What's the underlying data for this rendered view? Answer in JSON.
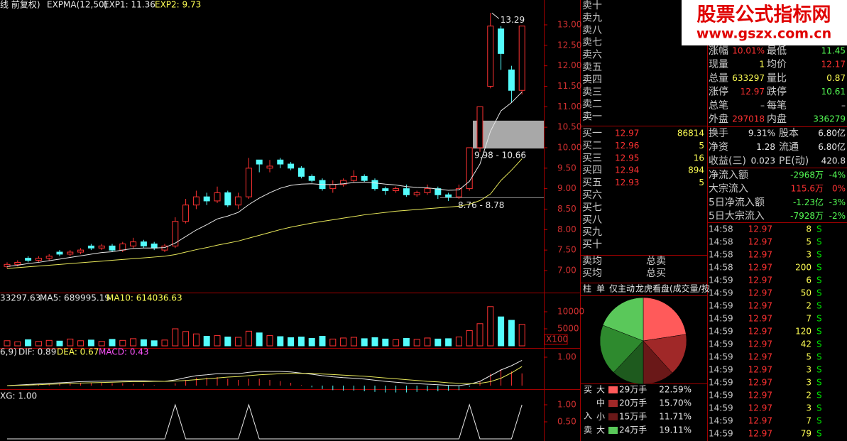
{
  "watermark": {
    "title": "股票公式指标网",
    "url": "www.gszx.com.cn"
  },
  "kline": {
    "header": [
      "线 前复权)",
      "EXPMA(12,50)",
      "EXP1: 11.36",
      "EXP2: 9.73"
    ],
    "up_color": "#ff3232",
    "down_color": "#54fcfc",
    "exp1_color": "#e8e8e8",
    "exp2_color": "#e8e85a",
    "ylim": [
      6.5,
      13.35
    ],
    "yticks": [
      {
        "value": 13,
        "label": "13.00"
      },
      {
        "value": 12.5,
        "label": "12.50"
      },
      {
        "value": 12,
        "label": "12.00"
      },
      {
        "value": 11.5,
        "label": "11.50"
      },
      {
        "value": 11,
        "label": "11.00"
      },
      {
        "value": 10.5,
        "label": "10.50"
      },
      {
        "value": 10,
        "label": "10.00"
      },
      {
        "value": 9.5,
        "label": "9.50"
      },
      {
        "value": 9,
        "label": "9.00"
      },
      {
        "value": 8.5,
        "label": "8.50"
      },
      {
        "value": 8,
        "label": "8.00"
      },
      {
        "value": 7.5,
        "label": "7.50"
      },
      {
        "value": 7,
        "label": "7.00"
      }
    ],
    "open": [
      7.1,
      7.15,
      7.3,
      7.25,
      7.3,
      7.45,
      7.4,
      7.45,
      7.6,
      7.55,
      7.6,
      7.5,
      7.6,
      7.7,
      7.65,
      7.5,
      7.6,
      8.2,
      8.6,
      8.8,
      8.7,
      8.9,
      8.6,
      8.8,
      9.7,
      9.5,
      9.7,
      9.6,
      9.5,
      9.3,
      9.2,
      9.0,
      9.1,
      9.2,
      9.3,
      9.2,
      9.0,
      8.95,
      9.0,
      8.85,
      8.9,
      9.0,
      8.85,
      8.8,
      9.0,
      10.0,
      11.5,
      12.9,
      11.9,
      11.4
    ],
    "high": [
      7.2,
      7.25,
      7.35,
      7.35,
      7.4,
      7.5,
      7.5,
      7.55,
      7.65,
      7.65,
      7.65,
      7.7,
      7.8,
      7.75,
      7.7,
      7.65,
      8.3,
      8.75,
      8.95,
      8.9,
      9.05,
      8.95,
      8.9,
      9.75,
      9.7,
      9.7,
      9.75,
      9.65,
      9.55,
      9.35,
      9.25,
      9.2,
      9.25,
      9.45,
      9.35,
      9.25,
      9.05,
      9.05,
      9.1,
      8.95,
      9.1,
      9.05,
      8.9,
      9.1,
      10.0,
      11.0,
      13.29,
      12.97,
      12.0,
      12.97
    ],
    "low": [
      7.05,
      7.1,
      7.2,
      7.2,
      7.25,
      7.35,
      7.35,
      7.4,
      7.5,
      7.5,
      7.45,
      7.45,
      7.55,
      7.55,
      7.5,
      7.45,
      7.55,
      8.15,
      8.5,
      8.6,
      8.65,
      8.55,
      8.5,
      8.75,
      9.4,
      9.4,
      9.5,
      9.45,
      9.25,
      9.15,
      8.95,
      8.9,
      9.05,
      9.15,
      9.15,
      8.95,
      8.85,
      8.9,
      8.8,
      8.8,
      8.85,
      8.75,
      8.7,
      8.75,
      8.95,
      9.9,
      11.45,
      11.9,
      11.1,
      11.3
    ],
    "close": [
      7.15,
      7.2,
      7.25,
      7.3,
      7.35,
      7.4,
      7.45,
      7.5,
      7.55,
      7.6,
      7.5,
      7.65,
      7.7,
      7.6,
      7.55,
      7.6,
      8.2,
      8.6,
      8.8,
      8.7,
      8.9,
      8.6,
      8.8,
      9.5,
      9.6,
      9.55,
      9.6,
      9.5,
      9.3,
      9.2,
      9.0,
      9.1,
      9.2,
      9.3,
      9.2,
      9.0,
      8.95,
      9.0,
      8.85,
      8.9,
      9.0,
      8.85,
      8.8,
      9.0,
      10.0,
      11.0,
      12.97,
      12.3,
      11.4,
      12.97
    ],
    "exp1": [
      7.1,
      7.13,
      7.17,
      7.2,
      7.24,
      7.28,
      7.32,
      7.36,
      7.4,
      7.44,
      7.46,
      7.5,
      7.54,
      7.55,
      7.55,
      7.56,
      7.67,
      7.83,
      7.99,
      8.12,
      8.26,
      8.33,
      8.42,
      8.61,
      8.77,
      8.9,
      9.01,
      9.08,
      9.11,
      9.12,
      9.1,
      9.1,
      9.12,
      9.15,
      9.16,
      9.14,
      9.11,
      9.09,
      9.05,
      9.03,
      9.02,
      8.99,
      8.96,
      8.97,
      9.18,
      9.6,
      10.4,
      10.9,
      11.1,
      11.36
    ],
    "exp2": [
      7.05,
      7.07,
      7.09,
      7.11,
      7.13,
      7.15,
      7.17,
      7.19,
      7.21,
      7.23,
      7.25,
      7.27,
      7.29,
      7.31,
      7.33,
      7.35,
      7.39,
      7.45,
      7.51,
      7.56,
      7.62,
      7.67,
      7.72,
      7.79,
      7.86,
      7.93,
      8.0,
      8.06,
      8.11,
      8.16,
      8.2,
      8.24,
      8.28,
      8.32,
      8.36,
      8.39,
      8.42,
      8.45,
      8.47,
      8.49,
      8.51,
      8.53,
      8.55,
      8.57,
      8.62,
      8.71,
      8.87,
      9.2,
      9.45,
      9.73
    ],
    "high_mark": {
      "value": 13.29,
      "label": "13.29"
    },
    "zone": {
      "low": 9.98,
      "high": 10.66,
      "label": "9.98 - 10.66"
    },
    "support": {
      "low": 8.76,
      "high": 8.78,
      "label": "8.76 - 8.78"
    }
  },
  "volume": {
    "header": [
      "33297.63",
      "MA5: 689995.19",
      "MA10: 614036.63"
    ],
    "unit": "X100",
    "ylim": [
      0,
      15600
    ],
    "yticks": [
      5000,
      10000
    ],
    "values": [
      1500,
      1200,
      1800,
      1300,
      1600,
      1400,
      2000,
      1500,
      1700,
      1300,
      1900,
      1600,
      2100,
      1800,
      1500,
      1700,
      5000,
      4200,
      3500,
      2800,
      3000,
      2600,
      2500,
      4300,
      3800,
      3000,
      2700,
      2400,
      2600,
      2200,
      2800,
      2000,
      2300,
      2500,
      2100,
      2400,
      2000,
      1800,
      2200,
      1900,
      2300,
      2000,
      2100,
      2600,
      4500,
      6500,
      11500,
      8500,
      7500,
      6300
    ]
  },
  "macd": {
    "header": [
      "6,9)",
      "DIF: 0.89",
      "DEA: 0.67",
      "MACD: 0.43"
    ],
    "ylim": [
      -0.1,
      1.3
    ],
    "yticks": [
      {
        "value": 1,
        "label": "1.00"
      }
    ],
    "dif": [
      0,
      0.02,
      0.04,
      0.06,
      0.08,
      0.1,
      0.12,
      0.14,
      0.15,
      0.16,
      0.16,
      0.17,
      0.17,
      0.17,
      0.16,
      0.15,
      0.2,
      0.28,
      0.35,
      0.38,
      0.42,
      0.42,
      0.42,
      0.47,
      0.5,
      0.5,
      0.5,
      0.48,
      0.44,
      0.4,
      0.35,
      0.31,
      0.28,
      0.26,
      0.23,
      0.19,
      0.15,
      0.12,
      0.09,
      0.07,
      0.05,
      0.03,
      0.01,
      0,
      0.05,
      0.15,
      0.35,
      0.55,
      0.7,
      0.89
    ],
    "dea": [
      0,
      0.01,
      0.02,
      0.03,
      0.05,
      0.06,
      0.08,
      0.09,
      0.1,
      0.11,
      0.12,
      0.13,
      0.14,
      0.14,
      0.15,
      0.15,
      0.16,
      0.18,
      0.21,
      0.24,
      0.27,
      0.3,
      0.32,
      0.35,
      0.38,
      0.4,
      0.42,
      0.43,
      0.43,
      0.43,
      0.41,
      0.39,
      0.37,
      0.35,
      0.33,
      0.3,
      0.27,
      0.24,
      0.21,
      0.18,
      0.15,
      0.13,
      0.1,
      0.08,
      0.07,
      0.08,
      0.14,
      0.26,
      0.45,
      0.67
    ],
    "macd": [
      0,
      0.02,
      0.04,
      0.06,
      0.06,
      0.08,
      0.08,
      0.1,
      0.1,
      0.1,
      0.08,
      0.08,
      0.06,
      0.06,
      0.02,
      0,
      0.08,
      0.2,
      0.28,
      0.28,
      0.3,
      0.24,
      0.2,
      0.24,
      0.24,
      0.2,
      0.16,
      0.1,
      0.02,
      -0.06,
      -0.12,
      -0.16,
      -0.18,
      -0.18,
      -0.2,
      -0.22,
      -0.24,
      -0.24,
      -0.24,
      -0.22,
      -0.2,
      -0.2,
      -0.18,
      -0.16,
      -0.04,
      0.14,
      0.42,
      0.58,
      0.5,
      0.43
    ]
  },
  "xg": {
    "header": "XG: 1.00",
    "ylim": [
      0,
      1.25
    ],
    "yticks": [
      {
        "value": 0.5,
        "label": "0.50"
      },
      {
        "value": 1,
        "label": "1.00"
      }
    ],
    "values": [
      0,
      0,
      0,
      0,
      0,
      0,
      0,
      0,
      0,
      0,
      0,
      0,
      0,
      0,
      0,
      0,
      1,
      0,
      0,
      0,
      0,
      0,
      0,
      1,
      0,
      0,
      0,
      0,
      0,
      0,
      0,
      0,
      0,
      0,
      0,
      0,
      0,
      0,
      0,
      0,
      0,
      0,
      0,
      0,
      1,
      0,
      0,
      0,
      0,
      1
    ]
  },
  "order_book": {
    "sell": [
      "卖十",
      "卖九",
      "卖八",
      "卖七",
      "卖六",
      "卖五",
      "卖四",
      "卖三",
      "卖二",
      "卖一"
    ],
    "buy": [
      "买一",
      "买二",
      "买三",
      "买四",
      "买五",
      "买六",
      "买七",
      "买八",
      "买九",
      "买十"
    ],
    "buy_prices": [
      12.97,
      12.96,
      12.95,
      12.94,
      12.93
    ],
    "buy_volumes": [
      86814,
      5,
      16,
      894,
      5
    ],
    "avg": [
      [
        "卖均",
        "总卖"
      ],
      [
        "买均",
        "总买"
      ]
    ],
    "tabs": [
      "柱",
      "单",
      "仅主动",
      "龙虎看盘(成交量/按"
    ]
  },
  "flow": {
    "side_labels": [
      "买",
      "入",
      "卖"
    ],
    "rows": [
      {
        "size": "大",
        "amount": "29万手",
        "value": 22.59,
        "value_label": "22.59%",
        "color": "#ff5a5a"
      },
      {
        "size": "中",
        "amount": "20万手",
        "value": 15.7,
        "value_label": "15.70%",
        "color": "#a02828"
      },
      {
        "size": "小",
        "amount": "15万手",
        "value": 11.71,
        "value_label": "11.71%",
        "color": "#6a1818"
      },
      {
        "size": "大",
        "amount": "24万手",
        "value": 19.11,
        "value_label": "19.11%",
        "color": "#5ac85a"
      }
    ],
    "hidden_slices": [
      {
        "value": 12,
        "color": "#1e5a1e"
      },
      {
        "value": 18.89,
        "color": "#2e8a2e"
      }
    ]
  },
  "stats": {
    "rows": [
      [
        "涨幅",
        "10.01%",
        "最低",
        11.45
      ],
      [
        "现量",
        1,
        "均价",
        12.17
      ],
      [
        "总量",
        633297,
        "量比",
        0.87
      ],
      [
        "涨停",
        12.97,
        "跌停",
        10.61
      ],
      [
        "总笔",
        "–",
        "每笔",
        "–"
      ],
      [
        "外盘",
        297018,
        "内盘",
        336279
      ]
    ],
    "colors": [
      [
        "#ff3232",
        "#54fc54"
      ],
      [
        "#ffff54",
        "#ff3232"
      ],
      [
        "#ffff54",
        "#ffff54"
      ],
      [
        "#ff3232",
        "#54fc54"
      ],
      [
        "#c8c8c8",
        "#c8c8c8"
      ],
      [
        "#ff3232",
        "#54fc54"
      ]
    ],
    "rows2": [
      [
        "换手",
        "9.31%",
        "股本",
        "6.80亿"
      ],
      [
        "净资",
        1.28,
        "流通",
        "6.80亿"
      ],
      [
        "收益(三)",
        0.023,
        "PE(动)",
        420.8
      ]
    ],
    "flows": [
      [
        "净流入额",
        "-2968万",
        "-4%"
      ],
      [
        "大宗流入",
        "115.6万",
        "0%"
      ],
      [
        "5日净流入额",
        "-1.23亿",
        "-3%"
      ],
      [
        "5日大宗流入",
        "-7928万",
        "-2%"
      ]
    ],
    "flow_colors": [
      "#54fc54",
      "#ff3232",
      "#54fc54",
      "#54fc54"
    ]
  },
  "tape": [
    [
      "14:58",
      12.97,
      8,
      "S"
    ],
    [
      "14:58",
      12.97,
      5,
      "S"
    ],
    [
      "14:58",
      12.97,
      3,
      "S"
    ],
    [
      "14:58",
      12.97,
      200,
      "S"
    ],
    [
      "14:59",
      12.97,
      6,
      "S"
    ],
    [
      "14:59",
      12.97,
      50,
      "S"
    ],
    [
      "14:59",
      12.97,
      2,
      "S"
    ],
    [
      "14:59",
      12.97,
      7,
      "S"
    ],
    [
      "14:59",
      12.97,
      120,
      "S"
    ],
    [
      "14:59",
      12.97,
      42,
      "S"
    ],
    [
      "14:59",
      12.97,
      5,
      "S"
    ],
    [
      "14:59",
      12.97,
      3,
      "S"
    ],
    [
      "14:59",
      12.97,
      3,
      "S"
    ],
    [
      "14:59",
      12.97,
      2,
      "S"
    ],
    [
      "14:59",
      12.97,
      3,
      "S"
    ],
    [
      "14:59",
      12.97,
      7,
      "S"
    ],
    [
      "14:59",
      12.97,
      79,
      "S"
    ]
  ]
}
